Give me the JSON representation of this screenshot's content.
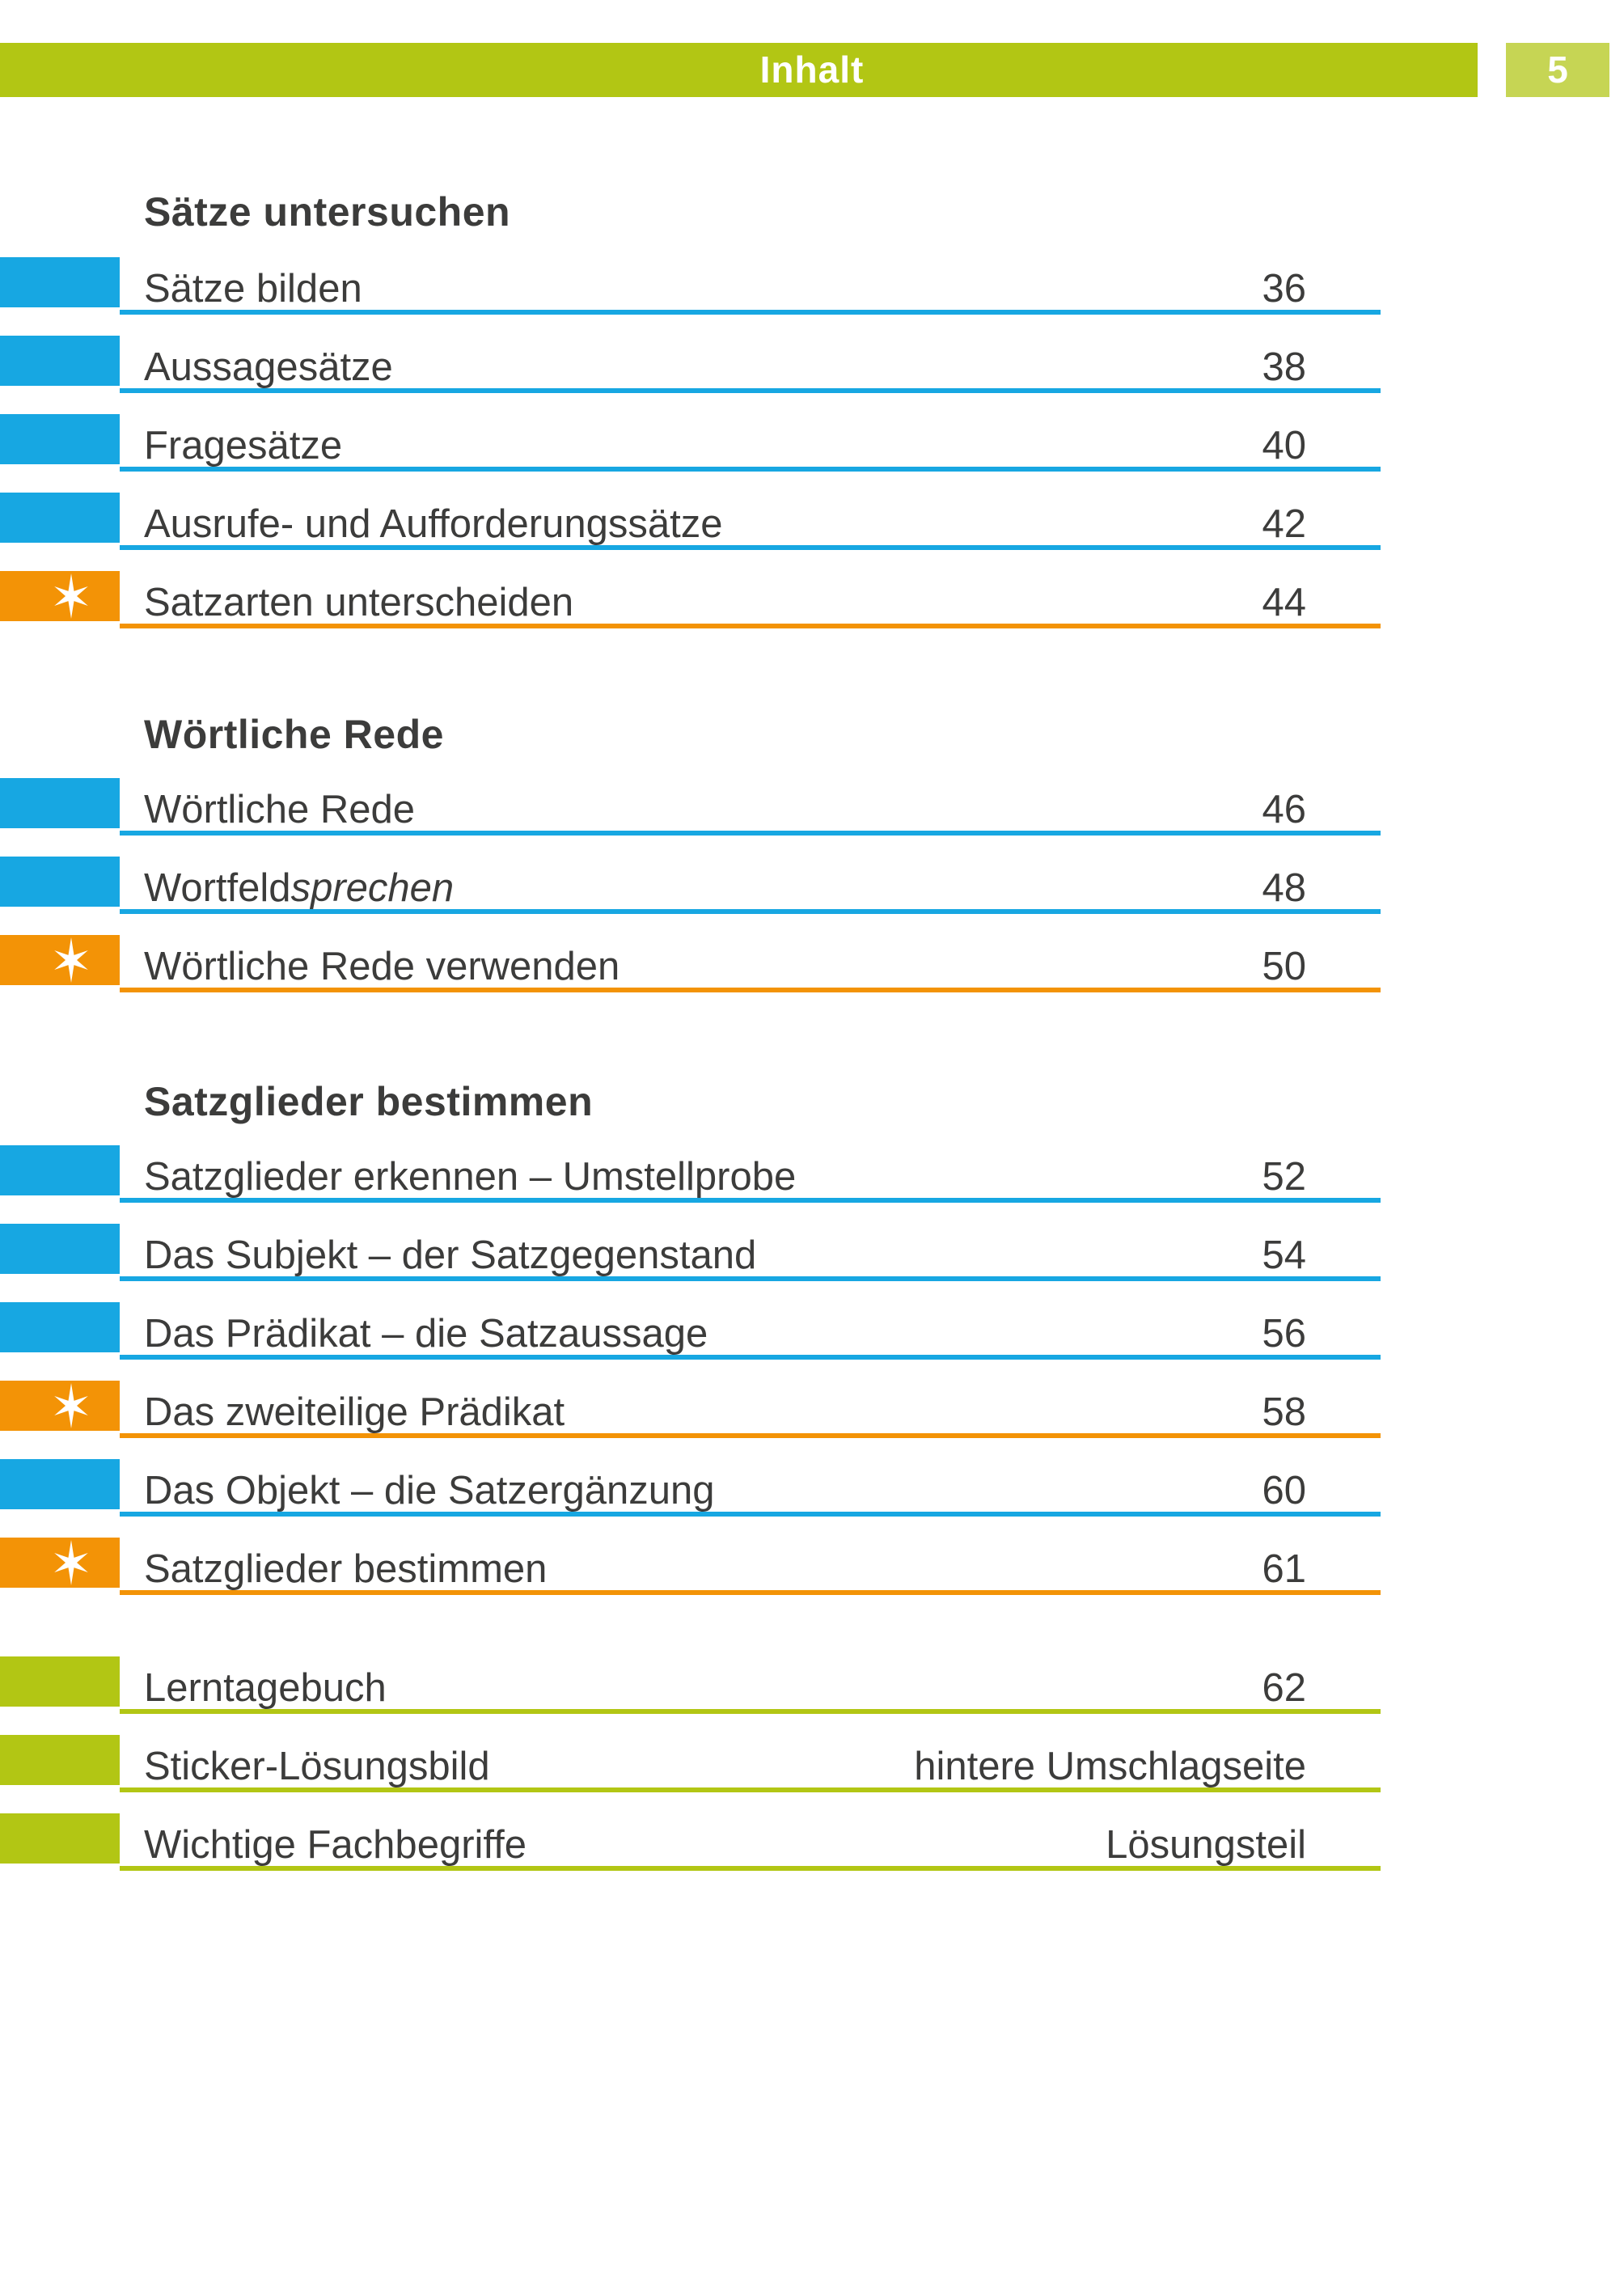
{
  "header": {
    "title": "Inhalt",
    "page_number": "5"
  },
  "colors": {
    "blue": "#17a7e2",
    "orange": "#f39306",
    "green": "#b2c614",
    "green_light": "#c6d554",
    "text": "#3c3c3b"
  },
  "icons": {
    "star": "six-pointed-star"
  },
  "sections": [
    {
      "heading": "Sätze untersuchen",
      "rows": [
        {
          "label": "Sätze bilden",
          "page": "36",
          "color": "blue",
          "star": false
        },
        {
          "label": "Aussagesätze",
          "page": "38",
          "color": "blue",
          "star": false
        },
        {
          "label": "Fragesätze",
          "page": "40",
          "color": "blue",
          "star": false
        },
        {
          "label": "Ausrufe- und Aufforderungssätze",
          "page": "42",
          "color": "blue",
          "star": false
        },
        {
          "label": "Satzarten unterscheiden",
          "page": "44",
          "color": "orange",
          "star": true
        }
      ]
    },
    {
      "heading": "Wörtliche Rede",
      "rows": [
        {
          "label": "Wörtliche Rede",
          "page": "46",
          "color": "blue",
          "star": false
        },
        {
          "label": "Wortfeld ",
          "label_italic": "sprechen",
          "page": "48",
          "color": "blue",
          "star": false
        },
        {
          "label": "Wörtliche Rede verwenden",
          "page": "50",
          "color": "orange",
          "star": true
        }
      ]
    },
    {
      "heading": "Satzglieder bestimmen",
      "rows": [
        {
          "label": "Satzglieder erkennen – Umstellprobe",
          "page": "52",
          "color": "blue",
          "star": false
        },
        {
          "label": "Das Subjekt – der Satzgegenstand",
          "page": "54",
          "color": "blue",
          "star": false
        },
        {
          "label": "Das Prädikat – die Satzaussage",
          "page": "56",
          "color": "blue",
          "star": false
        },
        {
          "label": "Das zweiteilige Prädikat",
          "page": "58",
          "color": "orange",
          "star": true
        },
        {
          "label": "Das Objekt – die Satzergänzung",
          "page": "60",
          "color": "blue",
          "star": false
        },
        {
          "label": "Satzglieder bestimmen",
          "page": "61",
          "color": "orange",
          "star": true
        }
      ]
    },
    {
      "heading": null,
      "rows": [
        {
          "label": "Lerntagebuch",
          "page": "62",
          "color": "green",
          "star": false
        },
        {
          "label": "Sticker-Lösungsbild",
          "page": "hintere Umschlagseite",
          "color": "green",
          "star": false
        },
        {
          "label": "Wichtige Fachbegriffe",
          "page": "Lösungsteil",
          "color": "green",
          "star": false
        }
      ]
    }
  ]
}
